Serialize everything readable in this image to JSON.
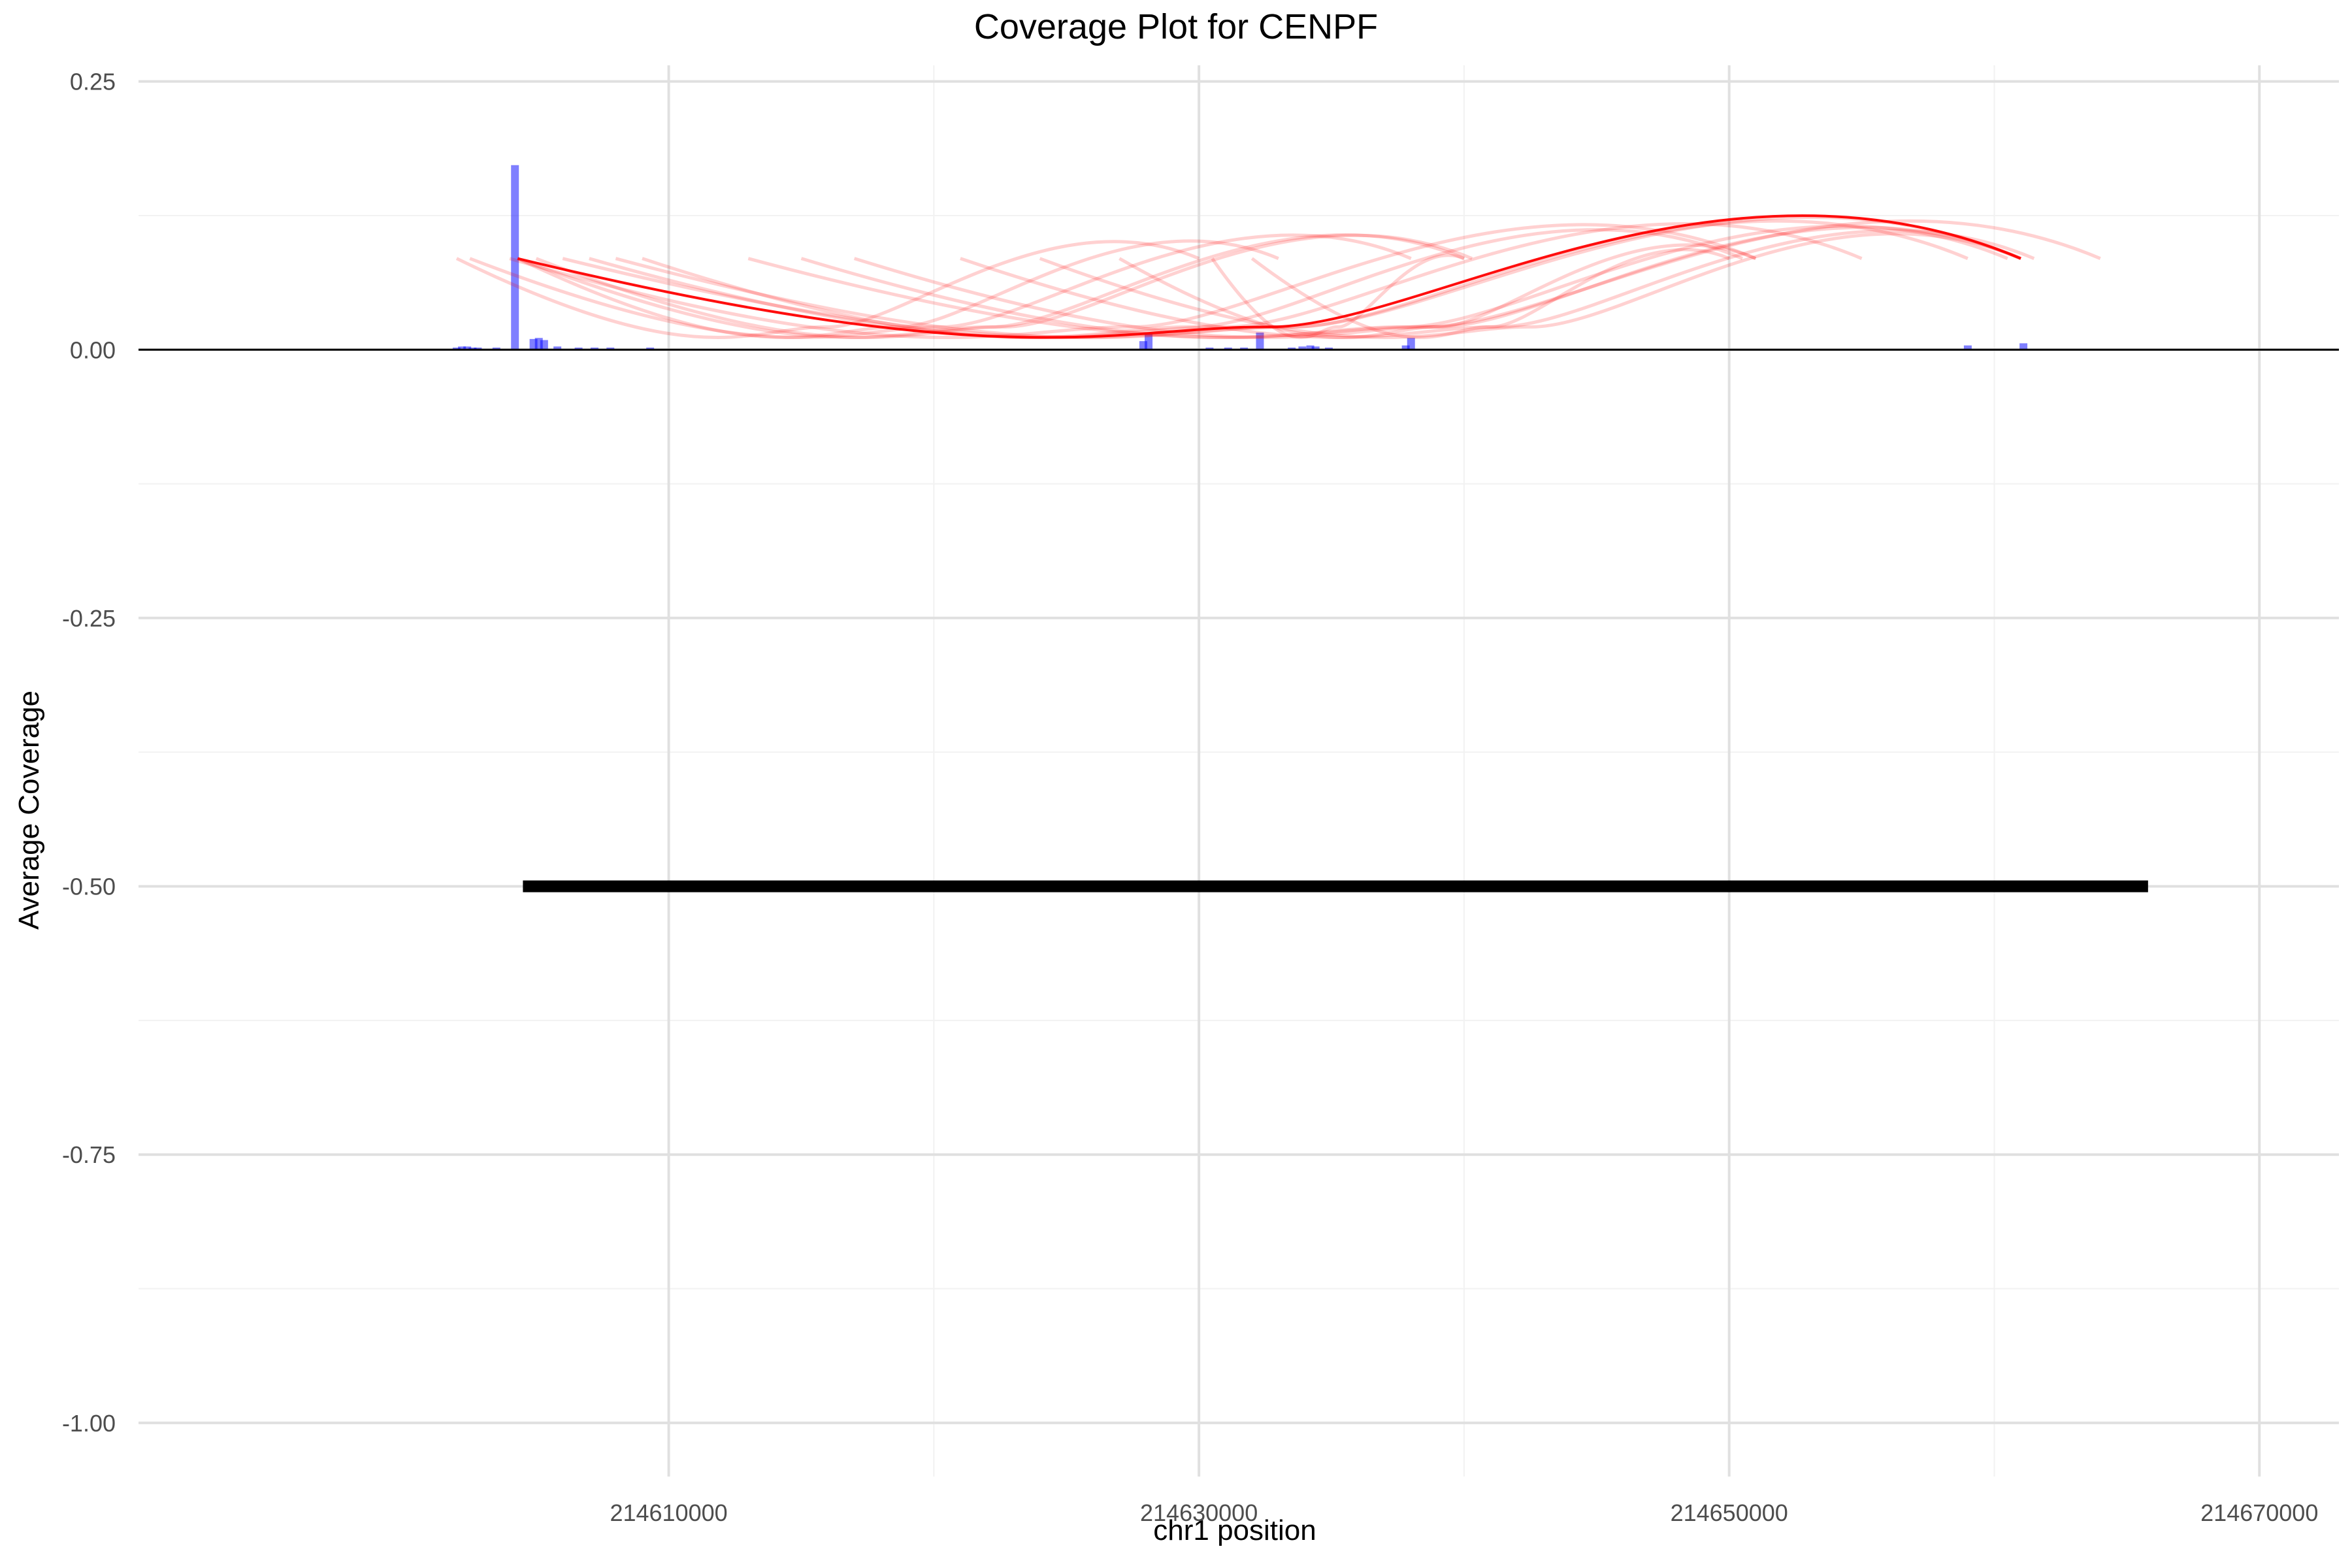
{
  "chart_data": {
    "type": "bar",
    "title": "Coverage Plot for CENPF",
    "xlabel": "chr1 position",
    "ylabel": "Average Coverage",
    "xlim": [
      214590000,
      214673000
    ],
    "ylim": [
      -1.05,
      0.265
    ],
    "x_ticks": [
      214610000,
      214630000,
      214650000,
      214670000
    ],
    "x_tick_labels": [
      "214610000",
      "214630000",
      "214650000",
      "214670000"
    ],
    "y_ticks": [
      0.25,
      0.0,
      -0.25,
      -0.5,
      -0.75,
      -1.0
    ],
    "y_tick_labels": [
      "0.25",
      "0.00",
      "-0.25",
      "-0.50",
      "-0.75",
      "-1.00"
    ],
    "grid": true,
    "zero_line": true,
    "coverage_color": "#0000ff",
    "coverage_bars": [
      {
        "x": 214602000,
        "y": 0.002
      },
      {
        "x": 214602200,
        "y": 0.003
      },
      {
        "x": 214602400,
        "y": 0.003
      },
      {
        "x": 214602600,
        "y": 0.002
      },
      {
        "x": 214602800,
        "y": 0.002
      },
      {
        "x": 214603500,
        "y": 0.002
      },
      {
        "x": 214604200,
        "y": 0.172
      },
      {
        "x": 214604900,
        "y": 0.01
      },
      {
        "x": 214605100,
        "y": 0.011
      },
      {
        "x": 214605300,
        "y": 0.009
      },
      {
        "x": 214605800,
        "y": 0.003
      },
      {
        "x": 214606600,
        "y": 0.002
      },
      {
        "x": 214607200,
        "y": 0.002
      },
      {
        "x": 214607800,
        "y": 0.002
      },
      {
        "x": 214609300,
        "y": 0.002
      },
      {
        "x": 214627900,
        "y": 0.008
      },
      {
        "x": 214628100,
        "y": 0.015
      },
      {
        "x": 214630400,
        "y": 0.002
      },
      {
        "x": 214631100,
        "y": 0.002
      },
      {
        "x": 214631700,
        "y": 0.002
      },
      {
        "x": 214632300,
        "y": 0.016
      },
      {
        "x": 214633500,
        "y": 0.002
      },
      {
        "x": 214633900,
        "y": 0.003
      },
      {
        "x": 214634200,
        "y": 0.004
      },
      {
        "x": 214634400,
        "y": 0.003
      },
      {
        "x": 214634900,
        "y": 0.002
      },
      {
        "x": 214637800,
        "y": 0.004
      },
      {
        "x": 214638000,
        "y": 0.011
      },
      {
        "x": 214659000,
        "y": 0.004
      },
      {
        "x": 214661100,
        "y": 0.006
      }
    ],
    "junction_color": "#ff0000",
    "junctions": [
      {
        "start": 214602000,
        "end": 214630000
      },
      {
        "start": 214602500,
        "end": 214638000
      },
      {
        "start": 214604300,
        "end": 214633000
      },
      {
        "start": 214604300,
        "end": 214640000
      },
      {
        "start": 214605000,
        "end": 214640300
      },
      {
        "start": 214604000,
        "end": 214651000
      },
      {
        "start": 214607000,
        "end": 214655000
      },
      {
        "start": 214608000,
        "end": 214659000
      },
      {
        "start": 214606000,
        "end": 214661000
      },
      {
        "start": 214609000,
        "end": 214650500
      },
      {
        "start": 214613000,
        "end": 214664000
      },
      {
        "start": 214615000,
        "end": 214660500
      },
      {
        "start": 214617000,
        "end": 214661000
      },
      {
        "start": 214621000,
        "end": 214661500
      },
      {
        "start": 214624000,
        "end": 214661000
      },
      {
        "start": 214627000,
        "end": 214651000
      },
      {
        "start": 214630500,
        "end": 214640000
      },
      {
        "start": 214632000,
        "end": 214650000
      },
      {
        "start": 214604300,
        "end": 214661000,
        "highlight": true
      }
    ],
    "gene_model": {
      "start": 214604500,
      "end": 214665800,
      "y": -0.5
    }
  }
}
